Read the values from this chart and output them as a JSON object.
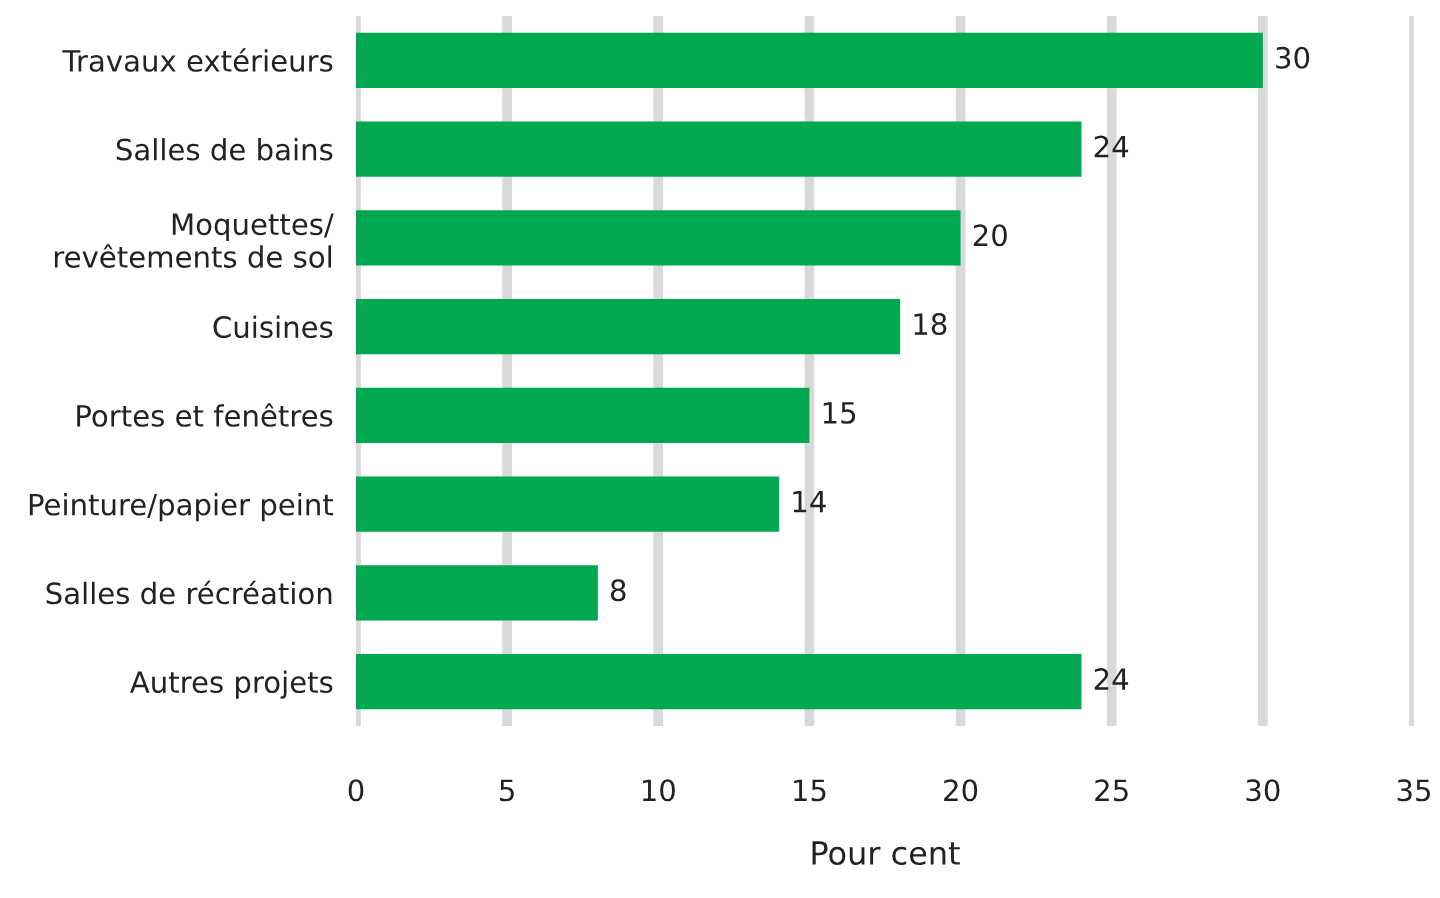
{
  "chart_data": {
    "type": "bar",
    "orientation": "horizontal",
    "xlabel": "Pour cent",
    "categories": [
      "Travaux extérieurs",
      "Salles de bains",
      "Moquettes/\nrevêtements de sol",
      "Cuisines",
      "Portes et fenêtres",
      "Peinture/papier peint",
      "Salles de récréation",
      "Autres projets"
    ],
    "values": [
      30,
      24,
      20,
      18,
      15,
      14,
      8,
      24
    ],
    "color": "#00a84f",
    "xlim": [
      0,
      35
    ],
    "xticks": [
      0,
      5,
      10,
      15,
      20,
      25,
      30,
      35
    ],
    "grid": "x",
    "data_labels": true,
    "legend": false
  }
}
